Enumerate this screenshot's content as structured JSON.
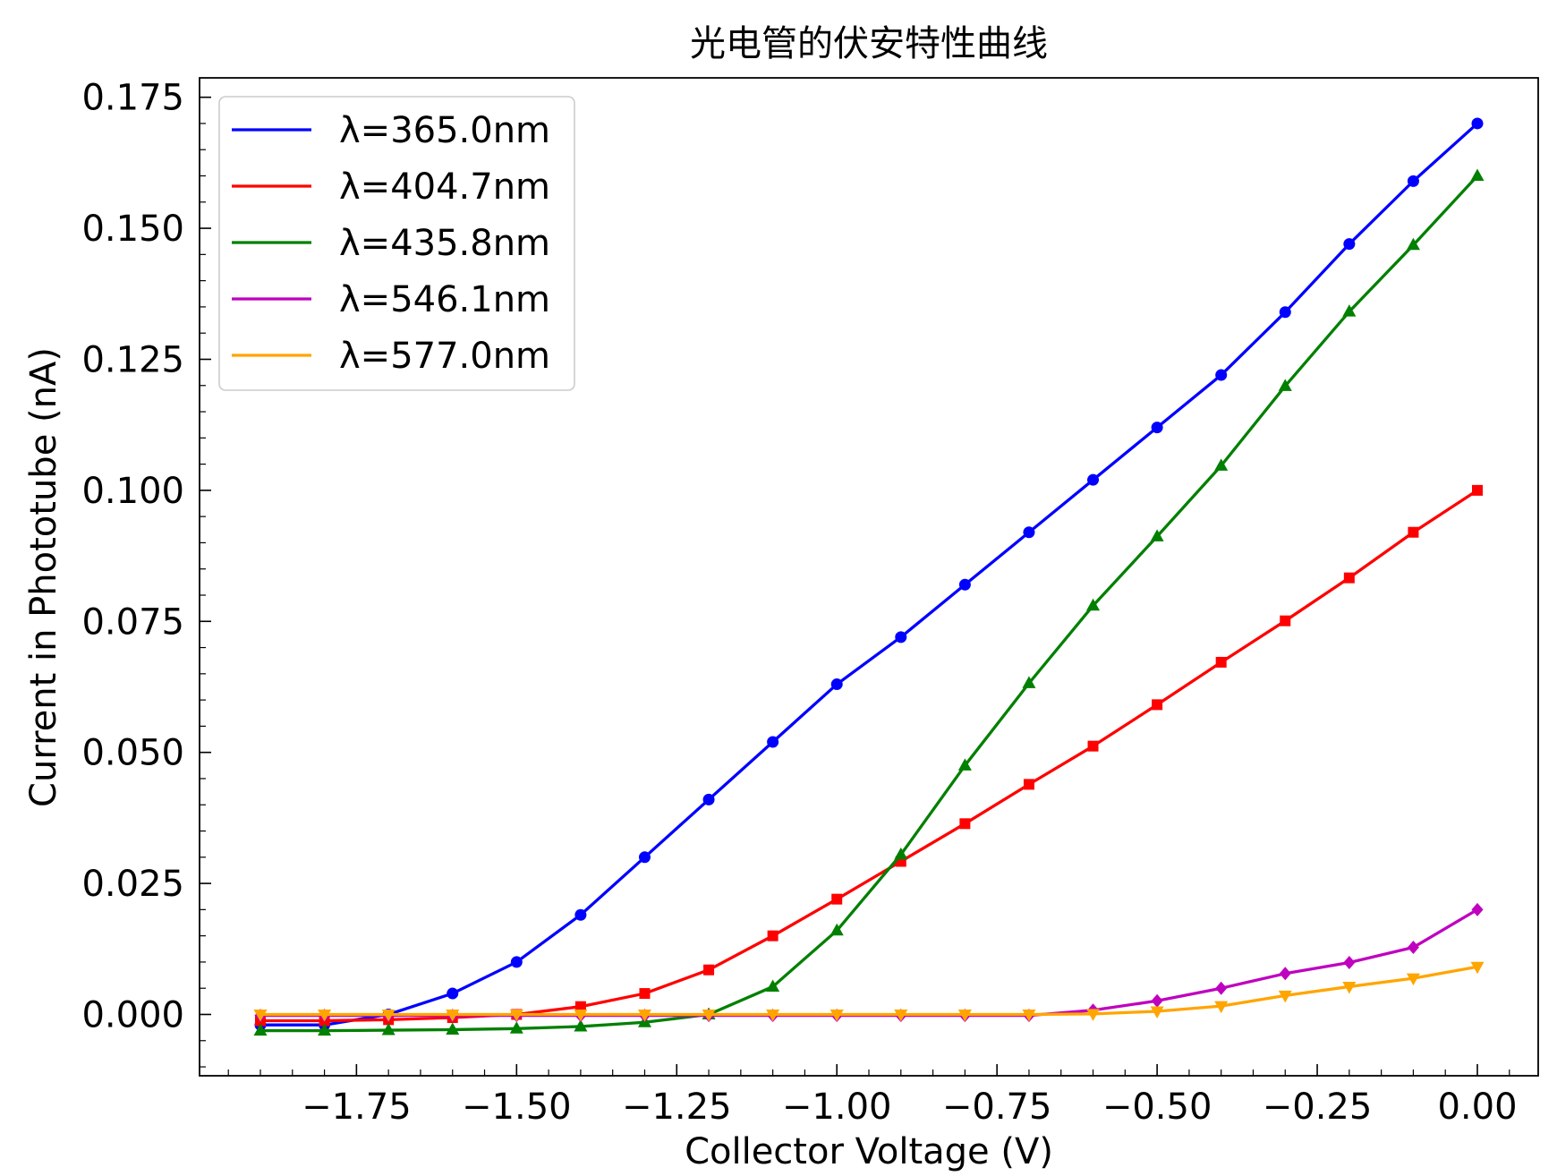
{
  "chart_data": {
    "type": "line",
    "title": "光电管的伏安特性曲线",
    "xlabel": "Collector Voltage (V)",
    "ylabel": "Current in Phototube (nA)",
    "xlim": [
      -1.995,
      0.095
    ],
    "ylim": [
      -0.0117,
      0.1787
    ],
    "grid": false,
    "legend": {
      "placement": "upper-left"
    },
    "xticks": {
      "values": [
        -1.75,
        -1.5,
        -1.25,
        -1.0,
        -0.75,
        -0.5,
        -0.25,
        0.0
      ],
      "labels": [
        "−1.75",
        "−1.50",
        "−1.25",
        "−1.00",
        "−0.75",
        "−0.50",
        "−0.25",
        "0.00"
      ]
    },
    "yticks": {
      "values": [
        0.0,
        0.025,
        0.05,
        0.075,
        0.1,
        0.125,
        0.15,
        0.175
      ],
      "labels": [
        "0.000",
        "0.025",
        "0.050",
        "0.075",
        "0.100",
        "0.125",
        "0.150",
        "0.175"
      ]
    },
    "x": [
      -1.9,
      -1.8,
      -1.7,
      -1.6,
      -1.5,
      -1.4,
      -1.3,
      -1.2,
      -1.1,
      -1.0,
      -0.9,
      -0.8,
      -0.7,
      -0.6,
      -0.5,
      -0.4,
      -0.3,
      -0.2,
      -0.1,
      0.0
    ],
    "series": [
      {
        "name": "λ=365.0nm",
        "color": "#0000ff",
        "marker": "circle",
        "values": [
          -0.002,
          -0.002,
          0.0,
          0.004,
          0.01,
          0.019,
          0.03,
          0.041,
          0.052,
          0.063,
          0.072,
          0.082,
          0.092,
          0.102,
          0.112,
          0.122,
          0.134,
          0.147,
          0.159,
          0.17
        ]
      },
      {
        "name": "λ=404.7nm",
        "color": "#ff0000",
        "marker": "square",
        "values": [
          -0.0012,
          -0.0012,
          -0.001,
          -0.0006,
          0.0,
          0.0015,
          0.004,
          0.0085,
          0.015,
          0.022,
          0.0292,
          0.0364,
          0.0439,
          0.0512,
          0.0591,
          0.0672,
          0.0751,
          0.0833,
          0.092,
          0.1
        ]
      },
      {
        "name": "λ=435.8nm",
        "color": "#008000",
        "marker": "triangle-up",
        "values": [
          -0.0031,
          -0.0031,
          -0.003,
          -0.0029,
          -0.0027,
          -0.0023,
          -0.0015,
          0.0,
          0.0053,
          0.016,
          0.0305,
          0.0475,
          0.0632,
          0.078,
          0.0912,
          0.1047,
          0.1199,
          0.1341,
          0.1468,
          0.16
        ]
      },
      {
        "name": "λ=546.1nm",
        "color": "#bf00bf",
        "marker": "diamond",
        "values": [
          -0.0002,
          -0.0002,
          -0.0002,
          -0.0002,
          -0.0002,
          -0.0002,
          -0.0002,
          -0.0002,
          -0.0002,
          -0.0002,
          -0.0002,
          -0.0002,
          -0.0002,
          0.0008,
          0.0026,
          0.005,
          0.0078,
          0.0099,
          0.0128,
          0.02
        ]
      },
      {
        "name": "λ=577.0nm",
        "color": "#ffa500",
        "marker": "triangle-down",
        "values": [
          0.0,
          0.0,
          0.0,
          0.0,
          0.0,
          0.0,
          0.0,
          0.0,
          0.0,
          0.0,
          0.0,
          0.0,
          0.0,
          0.0001,
          0.0006,
          0.0016,
          0.0036,
          0.0053,
          0.0069,
          0.0091
        ]
      }
    ]
  }
}
